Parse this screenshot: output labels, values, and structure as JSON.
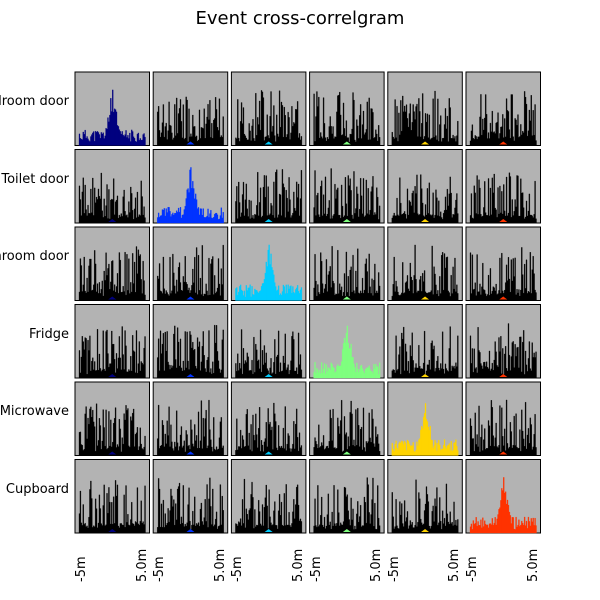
{
  "title": "Event cross-correlgram",
  "colors": {
    "background": "#b3b3b3",
    "off_diagonal": "#000000",
    "series": [
      "#00007f",
      "#0033ff",
      "#00ccff",
      "#7fff7f",
      "#ffd400",
      "#ff3300"
    ]
  },
  "chart_data": {
    "type": "bar",
    "layout": "6x6 grid of cross-correlograms",
    "row_labels": [
      "Bedroom door",
      "Toilet door",
      "Bathroom door",
      "Fridge",
      "Microwave",
      "Cupboard"
    ],
    "x_tick_labels": [
      "-5m",
      "5.0m"
    ],
    "xlim": [
      "-5m",
      "5.0m"
    ],
    "grid": false,
    "diagonal_peak_heights": [
      0.8,
      0.8,
      0.8,
      0.75,
      0.75,
      0.8
    ],
    "diagonal_peak_position": "center"
  }
}
